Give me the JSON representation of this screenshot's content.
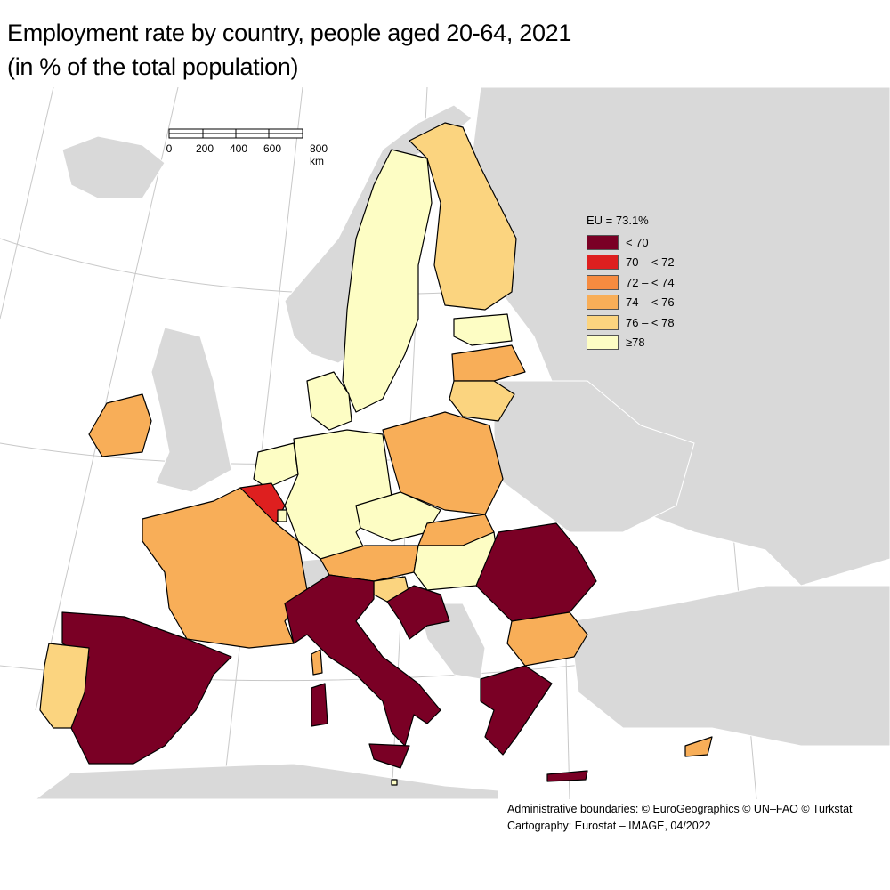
{
  "title": "Employment rate by country, people aged 20-64, 2021",
  "subtitle": "(in % of the total population)",
  "scale_bar": {
    "labels": [
      "0",
      "200",
      "400",
      "600",
      "800 km"
    ]
  },
  "legend": {
    "title": "EU = 73.1%",
    "classes": [
      {
        "label": "< 70",
        "color": "#7a0025"
      },
      {
        "label": "70 – < 72",
        "color": "#de1f1f"
      },
      {
        "label": "72 – < 74",
        "color": "#f68b40"
      },
      {
        "label": "74 – < 76",
        "color": "#f8ae58"
      },
      {
        "label": "76 – < 78",
        "color": "#fbd47f"
      },
      {
        "label": "≥78",
        "color": "#fdfdc4"
      }
    ]
  },
  "colors": {
    "non_eu": "#d9d9d9",
    "sea": "#ffffff",
    "border": "#000000"
  },
  "credits": {
    "line1": "Administrative boundaries: © EuroGeographics © UN–FAO © Turkstat",
    "line2": "Cartography: Eurostat – IMAGE, 04/2022"
  }
}
